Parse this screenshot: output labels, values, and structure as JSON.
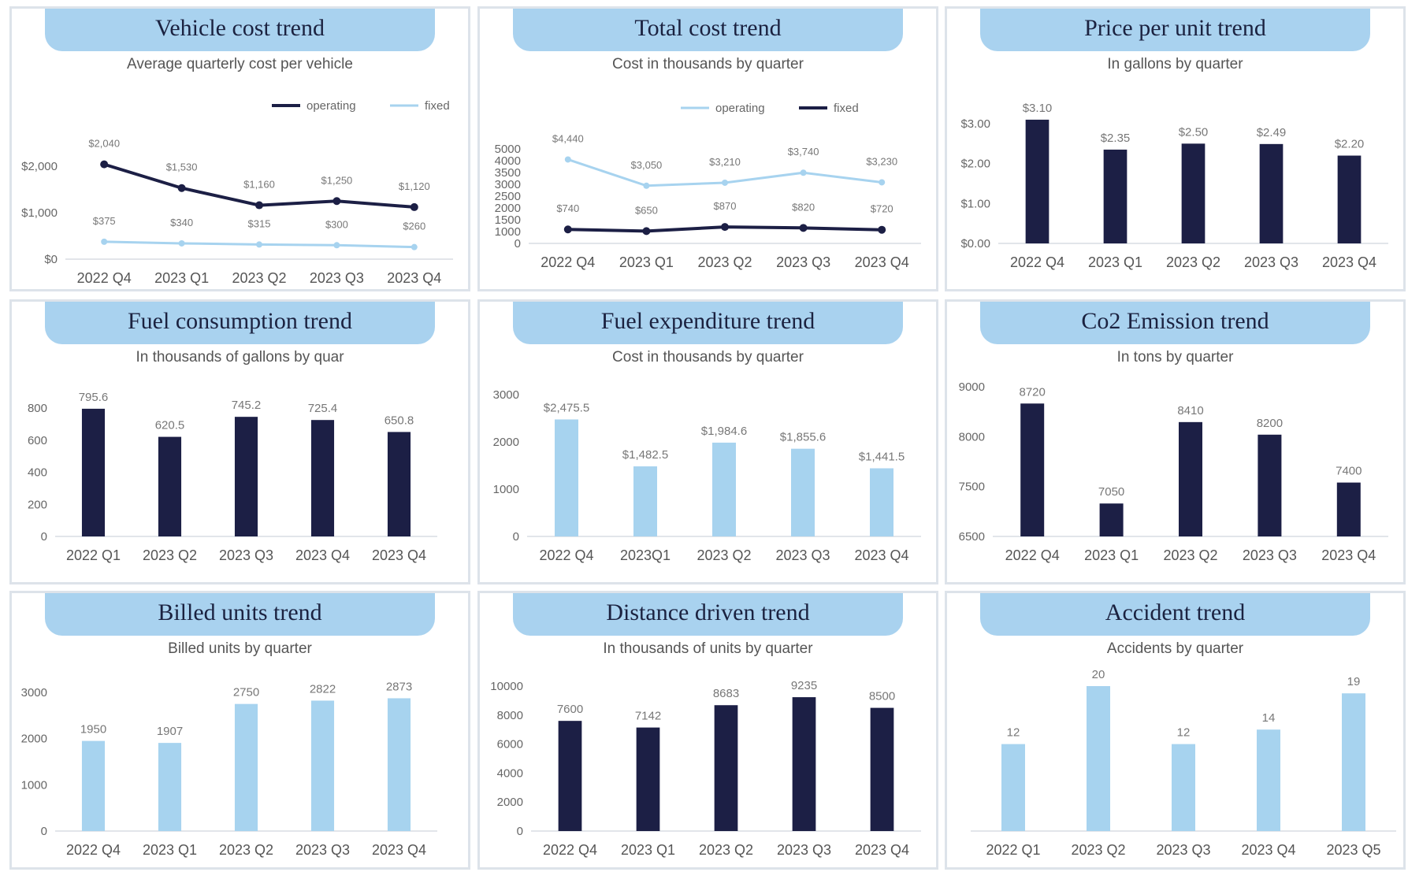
{
  "colors": {
    "dark": "#1c1f45",
    "light": "#a7d3ef",
    "title_bg": "#a9d2ef",
    "title_text": "#1b2240",
    "panel_border": "#dde3ea"
  },
  "chart_data": [
    {
      "id": "vehicle-cost",
      "type": "line",
      "title": "Vehicle cost trend",
      "subtitle": "Average quarterly cost per vehicle",
      "categories": [
        "2022 Q4",
        "2023 Q1",
        "2023 Q2",
        "2023 Q3",
        "2023 Q4"
      ],
      "yticks": [
        "$0",
        "$1,000",
        "$2,000"
      ],
      "ylim": [
        0,
        2000
      ],
      "series": [
        {
          "name": "operating",
          "color": "#1c1f45",
          "values": [
            2040,
            1530,
            1160,
            1250,
            1120
          ],
          "labels": [
            "$2,040",
            "$1,530",
            "$1,160",
            "$1,250",
            "$1,120"
          ]
        },
        {
          "name": "fixed",
          "color": "#a7d3ef",
          "values": [
            375,
            340,
            315,
            300,
            260
          ],
          "labels": [
            "$375",
            "$340",
            "$315",
            "$300",
            "$260"
          ]
        }
      ],
      "legend": "top-right"
    },
    {
      "id": "total-cost",
      "type": "line",
      "title": "Total cost trend",
      "subtitle": "Cost in thousands by quarter",
      "categories": [
        "2022 Q4",
        "2023 Q1",
        "2023 Q2",
        "2023 Q3",
        "2023 Q4"
      ],
      "yticks": [
        "0",
        "1000",
        "1500",
        "2000",
        "2500",
        "3000",
        "3500",
        "4000",
        "5000"
      ],
      "ylim": [
        0,
        5000
      ],
      "series": [
        {
          "name": "operating",
          "color": "#a7d3ef",
          "values": [
            4440,
            3050,
            3210,
            3740,
            3230
          ],
          "labels": [
            "$4,440",
            "$3,050",
            "$3,210",
            "$3,740",
            "$3,230"
          ]
        },
        {
          "name": "fixed",
          "color": "#1c1f45",
          "values": [
            740,
            650,
            870,
            820,
            720
          ],
          "labels": [
            "$740",
            "$650",
            "$870",
            "$820",
            "$720"
          ]
        }
      ],
      "legend": "top-right"
    },
    {
      "id": "price-per-unit",
      "type": "bar",
      "title": "Price per unit trend",
      "subtitle": "In gallons by quarter",
      "categories": [
        "2022 Q4",
        "2023 Q1",
        "2023 Q2",
        "2023 Q3",
        "2023 Q4"
      ],
      "values": [
        3.1,
        2.35,
        2.5,
        2.49,
        2.2
      ],
      "labels": [
        "$3.10",
        "$2.35",
        "$2.50",
        "$2.49",
        "$2.20"
      ],
      "yticks": [
        "$0.00",
        "$1.00",
        "$2.00",
        "$3.00"
      ],
      "ylim": [
        0,
        3
      ],
      "color": "#1c1f45"
    },
    {
      "id": "fuel-consumption",
      "type": "bar",
      "title": "Fuel consumption trend",
      "subtitle": "In thousands of gallons by quar",
      "categories": [
        "2022 Q1",
        "2023 Q2",
        "2023 Q3",
        "2023 Q4",
        "2023 Q4"
      ],
      "values": [
        795.6,
        620.5,
        745.2,
        725.4,
        650.8
      ],
      "labels": [
        "795.6",
        "620.5",
        "745.2",
        "725.4",
        "650.8"
      ],
      "yticks": [
        "0",
        "200",
        "400",
        "600",
        "800"
      ],
      "ylim": [
        0,
        800
      ],
      "color": "#1c1f45"
    },
    {
      "id": "fuel-expenditure",
      "type": "bar",
      "title": "Fuel expenditure trend",
      "subtitle": "Cost in thousands by quarter",
      "categories": [
        "2022 Q4",
        "2023Q1",
        "2023 Q2",
        "2023 Q3",
        "2023 Q4"
      ],
      "values": [
        2475.5,
        1482.5,
        1984.6,
        1855.6,
        1441.5
      ],
      "labels": [
        "$2,475.5",
        "$1,482.5",
        "$1,984.6",
        "$1,855.6",
        "$1,441.5"
      ],
      "yticks": [
        "0",
        "1000",
        "2000",
        "3000"
      ],
      "ylim": [
        0,
        3000
      ],
      "color": "#a7d3ef"
    },
    {
      "id": "co2-emission",
      "type": "bar",
      "title": "Co2 Emission trend",
      "subtitle": "In tons by quarter",
      "categories": [
        "2022 Q4",
        "2023 Q1",
        "2023 Q2",
        "2023 Q3",
        "2023 Q4"
      ],
      "values": [
        8720,
        7050,
        8410,
        8200,
        7400
      ],
      "labels": [
        "8720",
        "7050",
        "8410",
        "8200",
        "7400"
      ],
      "yticks": [
        "6500",
        "7500",
        "8000",
        "9000"
      ],
      "ylim": [
        6500,
        9000
      ],
      "color": "#1c1f45"
    },
    {
      "id": "billed-units",
      "type": "bar",
      "title": "Billed units trend",
      "subtitle": "Billed units by quarter",
      "categories": [
        "2022 Q4",
        "2023 Q1",
        "2023 Q2",
        "2023 Q3",
        "2023 Q4"
      ],
      "values": [
        1950,
        1907,
        2750,
        2822,
        2873
      ],
      "labels": [
        "1950",
        "1907",
        "2750",
        "2822",
        "2873"
      ],
      "yticks": [
        "0",
        "1000",
        "2000",
        "3000"
      ],
      "ylim": [
        0,
        3000
      ],
      "color": "#a7d3ef"
    },
    {
      "id": "distance-driven",
      "type": "bar",
      "title": "Distance driven trend",
      "subtitle": "In thousands of units by quarter",
      "categories": [
        "2022 Q4",
        "2023 Q1",
        "2023 Q2",
        "2023 Q3",
        "2023 Q4"
      ],
      "values": [
        7600,
        7142,
        8683,
        9235,
        8500
      ],
      "labels": [
        "7600",
        "7142",
        "8683",
        "9235",
        "8500"
      ],
      "yticks": [
        "0",
        "2000",
        "4000",
        "6000",
        "8000",
        "10000"
      ],
      "ylim": [
        0,
        10000
      ],
      "color": "#1c1f45"
    },
    {
      "id": "accident",
      "type": "bar",
      "title": "Accident trend",
      "subtitle": "Accidents by quarter",
      "categories": [
        "2022 Q1",
        "2023 Q2",
        "2023 Q3",
        "2023 Q4",
        "2023 Q5"
      ],
      "values": [
        12,
        20,
        12,
        14,
        19
      ],
      "labels": [
        "12",
        "20",
        "12",
        "14",
        "19"
      ],
      "yticks": [],
      "ylim": [
        0,
        20
      ],
      "color": "#a7d3ef"
    }
  ]
}
